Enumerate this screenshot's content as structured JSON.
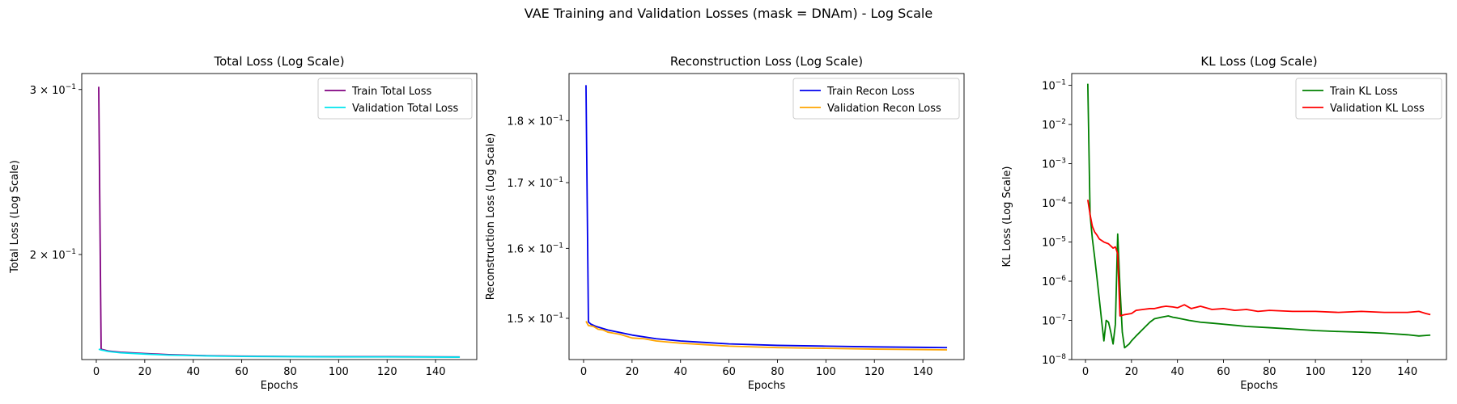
{
  "figure": {
    "title": "VAE Training and Validation Losses (mask = DNAm) - Log Scale"
  },
  "chart_data": [
    {
      "type": "line",
      "title": "Total Loss (Log Scale)",
      "xlabel": "Epochs",
      "ylabel": "Total Loss (Log Scale)",
      "xlim": [
        -6,
        157
      ],
      "ylim": [
        0.1545,
        0.312
      ],
      "yscale": "log",
      "xticks": [
        0,
        20,
        40,
        60,
        80,
        100,
        120,
        140
      ],
      "yticks": [
        {
          "value": 0.3,
          "mantissa": "3",
          "exp": "−1"
        },
        {
          "value": 0.2,
          "mantissa": "2",
          "exp": "−1"
        }
      ],
      "legend_position": "top-right",
      "series": [
        {
          "name": "Train Total Loss",
          "color": "#800080",
          "points": [
            [
              1,
              0.302
            ],
            [
              2,
              0.1585
            ],
            [
              5,
              0.1578
            ],
            [
              10,
              0.1573
            ],
            [
              20,
              0.1568
            ],
            [
              30,
              0.1564
            ],
            [
              40,
              0.1561
            ],
            [
              50,
              0.1559
            ],
            [
              60,
              0.1558
            ],
            [
              80,
              0.1557
            ],
            [
              100,
              0.1556
            ],
            [
              120,
              0.1556
            ],
            [
              150,
              0.1555
            ]
          ]
        },
        {
          "name": "Validation Total Loss",
          "color": "#00e5ee",
          "points": [
            [
              1,
              0.1585
            ],
            [
              2,
              0.1582
            ],
            [
              5,
              0.1576
            ],
            [
              10,
              0.1571
            ],
            [
              20,
              0.1566
            ],
            [
              30,
              0.1562
            ],
            [
              40,
              0.156
            ],
            [
              50,
              0.1558
            ],
            [
              60,
              0.1557
            ],
            [
              80,
              0.1556
            ],
            [
              100,
              0.1555
            ],
            [
              120,
              0.1555
            ],
            [
              150,
              0.1554
            ]
          ]
        }
      ]
    },
    {
      "type": "line",
      "title": "Reconstruction Loss (Log Scale)",
      "xlabel": "Epochs",
      "ylabel": "Reconstruction Loss (Log Scale)",
      "xlim": [
        -6,
        157
      ],
      "ylim": [
        0.1444,
        0.188
      ],
      "yscale": "log",
      "xticks": [
        0,
        20,
        40,
        60,
        80,
        100,
        120,
        140
      ],
      "yticks": [
        {
          "value": 0.18,
          "mantissa": "1.8",
          "exp": "−1"
        },
        {
          "value": 0.17,
          "mantissa": "1.7",
          "exp": "−1"
        },
        {
          "value": 0.16,
          "mantissa": "1.6",
          "exp": "−1"
        },
        {
          "value": 0.15,
          "mantissa": "1.5",
          "exp": "−1"
        }
      ],
      "legend_position": "top-right",
      "series": [
        {
          "name": "Train Recon Loss",
          "color": "#0000ee",
          "points": [
            [
              1,
              0.186
            ],
            [
              2,
              0.1495
            ],
            [
              3,
              0.1492
            ],
            [
              5,
              0.1489
            ],
            [
              10,
              0.1484
            ],
            [
              20,
              0.1477
            ],
            [
              30,
              0.1472
            ],
            [
              40,
              0.1469
            ],
            [
              50,
              0.1467
            ],
            [
              60,
              0.1465
            ],
            [
              80,
              0.1463
            ],
            [
              100,
              0.1462
            ],
            [
              120,
              0.1461
            ],
            [
              150,
              0.146
            ]
          ]
        },
        {
          "name": "Validation Recon Loss",
          "color": "#ffa500",
          "points": [
            [
              1,
              0.1496
            ],
            [
              2,
              0.149
            ],
            [
              4,
              0.1489
            ],
            [
              6,
              0.1485
            ],
            [
              8,
              0.1484
            ],
            [
              10,
              0.1481
            ],
            [
              15,
              0.1478
            ],
            [
              20,
              0.1473
            ],
            [
              25,
              0.1472
            ],
            [
              30,
              0.1469
            ],
            [
              40,
              0.1466
            ],
            [
              50,
              0.1464
            ],
            [
              60,
              0.1462
            ],
            [
              80,
              0.146
            ],
            [
              100,
              0.1459
            ],
            [
              120,
              0.1458
            ],
            [
              150,
              0.1457
            ]
          ]
        }
      ]
    },
    {
      "type": "line",
      "title": "KL Loss (Log Scale)",
      "xlabel": "Epochs",
      "ylabel": "KL Loss (Log Scale)",
      "xlim": [
        -6,
        157
      ],
      "ylim": [
        1e-08,
        0.2
      ],
      "yscale": "log",
      "xticks": [
        0,
        20,
        40,
        60,
        80,
        100,
        120,
        140
      ],
      "yticks": [
        {
          "value": 0.1,
          "mantissa": "10",
          "exp": "−1"
        },
        {
          "value": 0.01,
          "mantissa": "10",
          "exp": "−2"
        },
        {
          "value": 0.001,
          "mantissa": "10",
          "exp": "−3"
        },
        {
          "value": 0.0001,
          "mantissa": "10",
          "exp": "−4"
        },
        {
          "value": 1e-05,
          "mantissa": "10",
          "exp": "−5"
        },
        {
          "value": 1e-06,
          "mantissa": "10",
          "exp": "−6"
        },
        {
          "value": 1e-07,
          "mantissa": "10",
          "exp": "−7"
        },
        {
          "value": 1e-08,
          "mantissa": "10",
          "exp": "−8"
        }
      ],
      "legend_position": "top-right",
      "series": [
        {
          "name": "Train KL Loss",
          "color": "#008000",
          "points": [
            [
              1,
              0.11
            ],
            [
              2,
              5e-05
            ],
            [
              3,
              1.2e-05
            ],
            [
              4,
              4e-06
            ],
            [
              5,
              1.2e-06
            ],
            [
              6,
              3.5e-07
            ],
            [
              7,
              1e-07
            ],
            [
              8,
              3e-08
            ],
            [
              9,
              1e-07
            ],
            [
              10,
              9e-08
            ],
            [
              11,
              5e-08
            ],
            [
              12,
              2.5e-08
            ],
            [
              13,
              8e-08
            ],
            [
              14,
              1.6e-05
            ],
            [
              15,
              7e-07
            ],
            [
              16,
              5e-08
            ],
            [
              17,
              2e-08
            ],
            [
              19,
              2.5e-08
            ],
            [
              20,
              3e-08
            ],
            [
              22,
              4e-08
            ],
            [
              25,
              6e-08
            ],
            [
              28,
              9e-08
            ],
            [
              30,
              1.1e-07
            ],
            [
              33,
              1.2e-07
            ],
            [
              36,
              1.3e-07
            ],
            [
              38,
              1.2e-07
            ],
            [
              40,
              1.15e-07
            ],
            [
              45,
              1e-07
            ],
            [
              50,
              9e-08
            ],
            [
              55,
              8.5e-08
            ],
            [
              60,
              8e-08
            ],
            [
              70,
              7e-08
            ],
            [
              80,
              6.5e-08
            ],
            [
              90,
              6e-08
            ],
            [
              100,
              5.5e-08
            ],
            [
              110,
              5.2e-08
            ],
            [
              120,
              5e-08
            ],
            [
              130,
              4.7e-08
            ],
            [
              140,
              4.3e-08
            ],
            [
              145,
              4e-08
            ],
            [
              150,
              4.2e-08
            ]
          ]
        },
        {
          "name": "Validation KL Loss",
          "color": "#ff0000",
          "points": [
            [
              1,
              0.00012
            ],
            [
              2,
              5e-05
            ],
            [
              3,
              2.5e-05
            ],
            [
              4,
              1.8e-05
            ],
            [
              5,
              1.5e-05
            ],
            [
              6,
              1.2e-05
            ],
            [
              8,
              1e-05
            ],
            [
              10,
              9e-06
            ],
            [
              12,
              7e-06
            ],
            [
              13,
              7.5e-06
            ],
            [
              14,
              5e-06
            ],
            [
              15,
              1.3e-07
            ],
            [
              17,
              1.4e-07
            ],
            [
              20,
              1.5e-07
            ],
            [
              22,
              1.8e-07
            ],
            [
              25,
              1.9e-07
            ],
            [
              28,
              2e-07
            ],
            [
              30,
              2e-07
            ],
            [
              33,
              2.2e-07
            ],
            [
              35,
              2.3e-07
            ],
            [
              38,
              2.2e-07
            ],
            [
              40,
              2.1e-07
            ],
            [
              43,
              2.5e-07
            ],
            [
              46,
              2e-07
            ],
            [
              50,
              2.3e-07
            ],
            [
              55,
              1.9e-07
            ],
            [
              60,
              2e-07
            ],
            [
              65,
              1.8e-07
            ],
            [
              70,
              1.9e-07
            ],
            [
              75,
              1.7e-07
            ],
            [
              80,
              1.8e-07
            ],
            [
              90,
              1.7e-07
            ],
            [
              100,
              1.7e-07
            ],
            [
              110,
              1.6e-07
            ],
            [
              120,
              1.7e-07
            ],
            [
              130,
              1.6e-07
            ],
            [
              140,
              1.6e-07
            ],
            [
              145,
              1.7e-07
            ],
            [
              148,
              1.5e-07
            ],
            [
              150,
              1.4e-07
            ]
          ]
        }
      ]
    }
  ]
}
